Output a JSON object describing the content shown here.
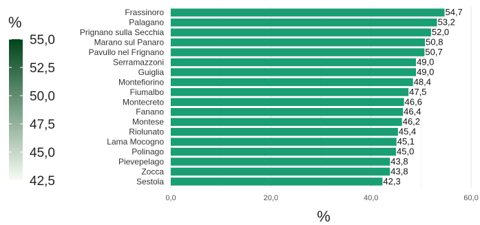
{
  "chart_data": {
    "type": "bar",
    "orientation": "horizontal",
    "categories": [
      "Frassinoro",
      "Palagano",
      "Prignano sulla Secchia",
      "Marano sul Panaro",
      "Pavullo nel Frignano",
      "Serramazzoni",
      "Guiglia",
      "Montefiorino",
      "Fiumalbo",
      "Montecreto",
      "Fanano",
      "Montese",
      "Riolunato",
      "Lama Mocogno",
      "Polinago",
      "Pievepelago",
      "Zocca",
      "Sestola"
    ],
    "values": [
      54.7,
      53.2,
      52.0,
      50.8,
      50.7,
      49.0,
      49.0,
      48.4,
      47.5,
      46.6,
      46.4,
      46.2,
      45.4,
      45.1,
      45.0,
      43.8,
      43.8,
      42.3
    ],
    "value_labels": [
      "54,7",
      "53,2",
      "52,0",
      "50,8",
      "50,7",
      "49,0",
      "49,0",
      "48,4",
      "47,5",
      "46,6",
      "46,4",
      "46,2",
      "45,4",
      "45,1",
      "45,0",
      "43,8",
      "43,8",
      "42,3"
    ],
    "xlabel": "%",
    "xlim": [
      0,
      60
    ],
    "x_ticks": [
      0,
      20,
      40,
      60
    ],
    "x_tick_labels": [
      "0,0",
      "20,0",
      "40,0",
      "60,0"
    ],
    "grid": true,
    "bar_color": "#1a9e74",
    "legend": {
      "title": "%",
      "placement": "left",
      "range": [
        42.5,
        55.0
      ],
      "ticks": [
        42.5,
        45.0,
        47.5,
        50.0,
        52.5,
        55.0
      ],
      "tick_labels": [
        "42,5",
        "45,0",
        "47,5",
        "50,0",
        "52,5",
        "55,0"
      ],
      "color_low": "#f7fcf5",
      "color_high": "#00441b"
    }
  }
}
